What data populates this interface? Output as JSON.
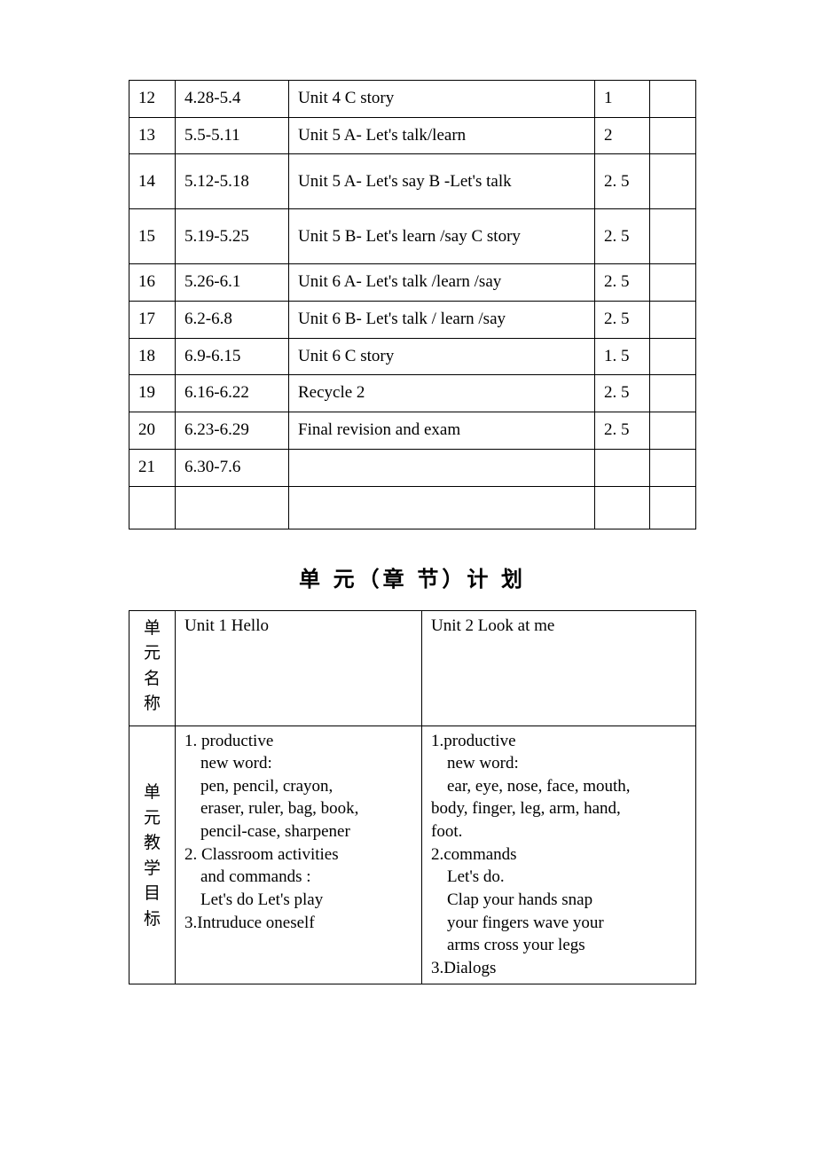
{
  "schedule": {
    "columns": {
      "num_widths": "col-num",
      "date_widths": "col-date",
      "content_widths": "col-content",
      "hours_widths": "col-hours",
      "notes_widths": "col-notes"
    },
    "rows": [
      {
        "num": "12",
        "date": "4.28-5.4",
        "content": "Unit 4 C story",
        "hours": "1",
        "tall": false
      },
      {
        "num": "13",
        "date": "5.5-5.11",
        "content": "Unit 5 A- Let's talk/learn",
        "hours": "2",
        "tall": false
      },
      {
        "num": "14",
        "date": "5.12-5.18",
        "content": "Unit 5 A- Let's say   B -Let's talk",
        "hours": "2. 5",
        "tall": true
      },
      {
        "num": "15",
        "date": "5.19-5.25",
        "content": "Unit 5 B- Let's learn /say   C story",
        "hours": "2. 5",
        "tall": true
      },
      {
        "num": "16",
        "date": "5.26-6.1",
        "content": "Unit 6 A- Let's talk /learn /say",
        "hours": "2. 5",
        "tall": false
      },
      {
        "num": "17",
        "date": "6.2-6.8",
        "content": "Unit 6 B- Let's talk / learn /say",
        "hours": "2. 5",
        "tall": false
      },
      {
        "num": "18",
        "date": "6.9-6.15",
        "content": "Unit 6 C story",
        "hours": "1. 5",
        "tall": false
      },
      {
        "num": "19",
        "date": "6.16-6.22",
        "content": "Recycle 2",
        "hours": "2. 5",
        "tall": false
      },
      {
        "num": "20",
        "date": "6.23-6.29",
        "content": "Final revision and exam",
        "hours": "2. 5",
        "tall": false
      },
      {
        "num": "21",
        "date": "6.30-7.6",
        "content": "",
        "hours": "",
        "tall": false
      },
      {
        "num": "",
        "date": "",
        "content": "",
        "hours": "",
        "tall": false,
        "empty": true
      }
    ]
  },
  "heading": "单 元（章 节）计 划",
  "plan": {
    "label_unit_name": [
      "单",
      "元",
      "名",
      "称"
    ],
    "label_unit_goals": [
      "单",
      "元",
      "教",
      "学",
      "目",
      "标"
    ],
    "unit1_name": "Unit 1 Hello",
    "unit2_name": "Unit 2  Look at me",
    "unit1_goals": [
      {
        "text": "1.  productive",
        "cls": ""
      },
      {
        "text": "new word:",
        "cls": "indent"
      },
      {
        "text": "pen, pencil, crayon,",
        "cls": "indent"
      },
      {
        "text": "eraser, ruler, bag, book,",
        "cls": "indent"
      },
      {
        "text": "pencil-case, sharpener",
        "cls": "indent"
      },
      {
        "text": "2.  Classroom activities",
        "cls": ""
      },
      {
        "text": "and commands :",
        "cls": "indent"
      },
      {
        "text": "Let's do  Let's play",
        "cls": "indent"
      },
      {
        "text": "3.Intruduce oneself",
        "cls": ""
      }
    ],
    "unit2_goals": [
      {
        "text": "1.productive",
        "cls": ""
      },
      {
        "text": "new word:",
        "cls": "indent"
      },
      {
        "text": "ear, eye, nose, face, mouth,",
        "cls": "indent"
      },
      {
        "text": "body, finger, leg, arm, hand,",
        "cls": ""
      },
      {
        "text": "foot.",
        "cls": ""
      },
      {
        "text": "2.commands",
        "cls": ""
      },
      {
        "text": "Let's do.",
        "cls": "indent"
      },
      {
        "text": "Clap your hands  snap",
        "cls": "indent"
      },
      {
        "text": "your fingers  wave your",
        "cls": "indent"
      },
      {
        "text": "arms  cross your legs",
        "cls": "indent"
      },
      {
        "text": "3.Dialogs",
        "cls": ""
      }
    ]
  }
}
